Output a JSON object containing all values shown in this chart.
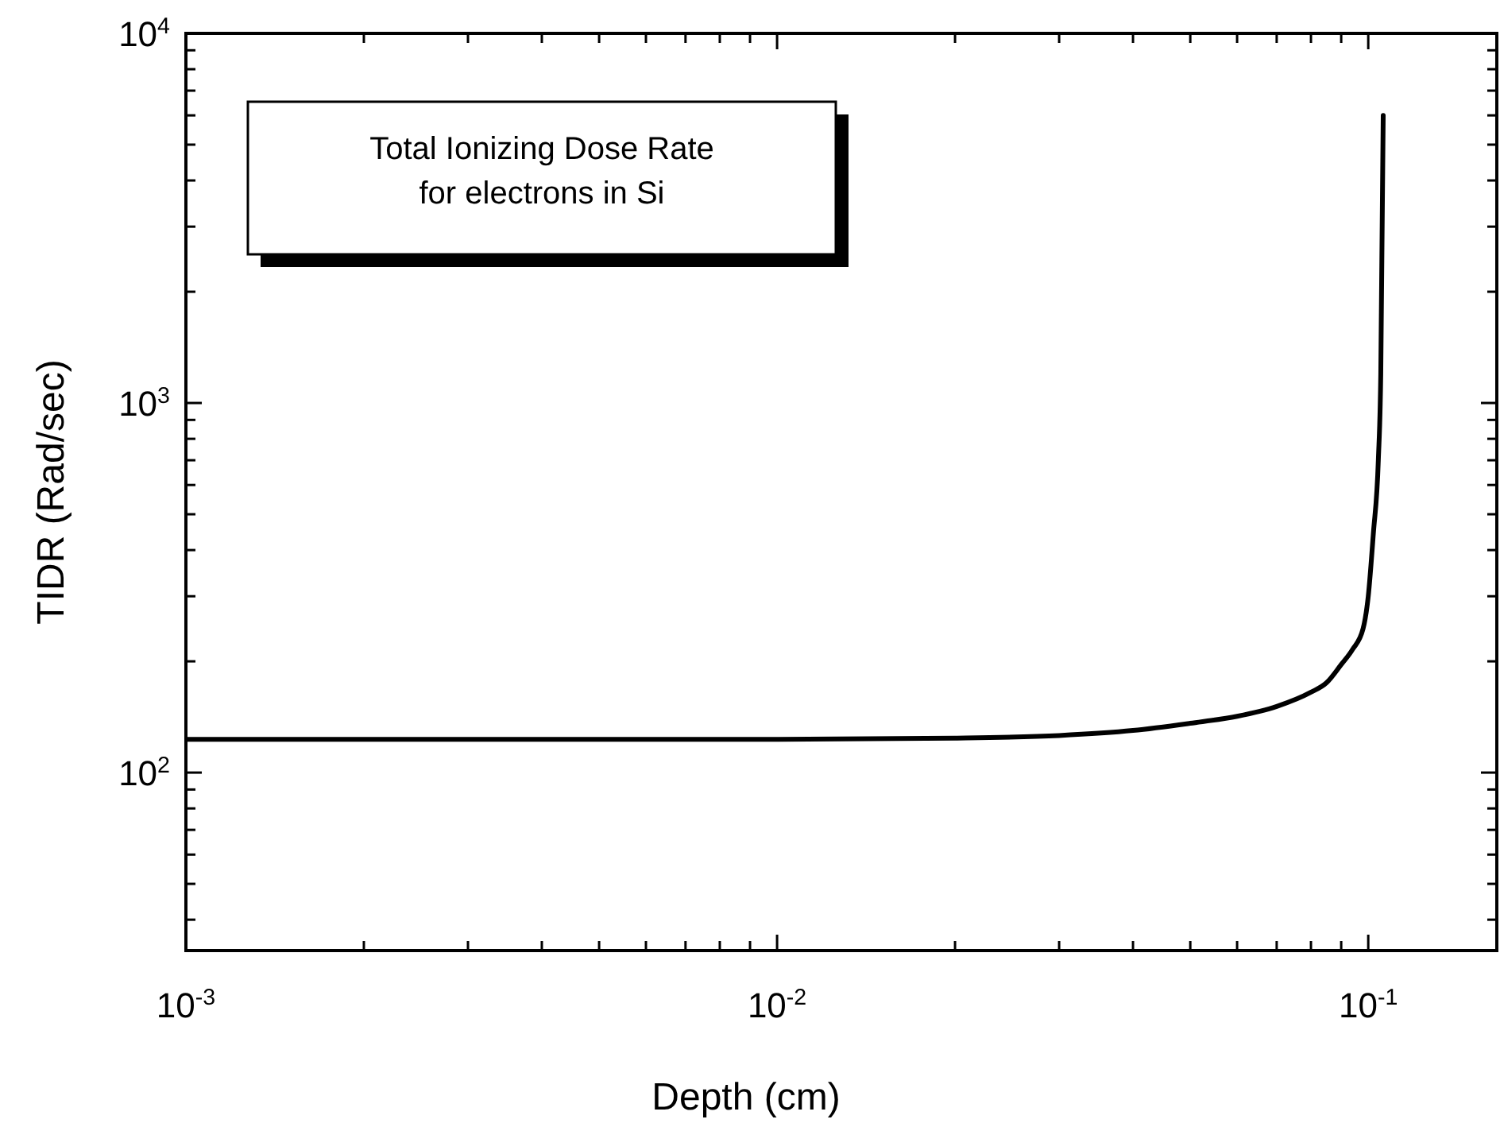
{
  "chart_data": {
    "type": "line",
    "title": "Total Ionizing Dose Rate\nfor electrons in Si",
    "xlabel": "Depth (cm)",
    "ylabel": "TIDR (Rad/sec)",
    "log": "xy",
    "grid": false,
    "marker": "none",
    "line_style": "solid",
    "xlim": [
      0.001,
      0.165
    ],
    "ylim": [
      33,
      10000
    ],
    "xticks": [
      {
        "value": 0.001,
        "label": "10$^{-3}$"
      },
      {
        "value": 0.002,
        "label": null
      },
      {
        "value": 0.003,
        "label": null
      },
      {
        "value": 0.004,
        "label": null
      },
      {
        "value": 0.005,
        "label": null
      },
      {
        "value": 0.006,
        "label": null
      },
      {
        "value": 0.007,
        "label": null
      },
      {
        "value": 0.008,
        "label": null
      },
      {
        "value": 0.009,
        "label": null
      },
      {
        "value": 0.01,
        "label": "10$^{-2}$"
      },
      {
        "value": 0.02,
        "label": null
      },
      {
        "value": 0.03,
        "label": null
      },
      {
        "value": 0.04,
        "label": null
      },
      {
        "value": 0.05,
        "label": null
      },
      {
        "value": 0.06,
        "label": null
      },
      {
        "value": 0.07,
        "label": null
      },
      {
        "value": 0.08,
        "label": null
      },
      {
        "value": 0.09,
        "label": null
      },
      {
        "value": 0.1,
        "label": "10$^{-1}$"
      }
    ],
    "yticks": [
      {
        "value": 40,
        "label": null
      },
      {
        "value": 50,
        "label": null
      },
      {
        "value": 60,
        "label": null
      },
      {
        "value": 70,
        "label": null
      },
      {
        "value": 80,
        "label": null
      },
      {
        "value": 90,
        "label": null
      },
      {
        "value": 100,
        "label": "10$^{2}$"
      },
      {
        "value": 200,
        "label": null
      },
      {
        "value": 300,
        "label": null
      },
      {
        "value": 400,
        "label": null
      },
      {
        "value": 500,
        "label": null
      },
      {
        "value": 600,
        "label": null
      },
      {
        "value": 700,
        "label": null
      },
      {
        "value": 800,
        "label": null
      },
      {
        "value": 900,
        "label": null
      },
      {
        "value": 1000,
        "label": "10$^{3}$"
      },
      {
        "value": 2000,
        "label": null
      },
      {
        "value": 3000,
        "label": null
      },
      {
        "value": 4000,
        "label": null
      },
      {
        "value": 5000,
        "label": null
      },
      {
        "value": 6000,
        "label": null
      },
      {
        "value": 7000,
        "label": null
      },
      {
        "value": 8000,
        "label": null
      },
      {
        "value": 9000,
        "label": null
      },
      {
        "value": 10000,
        "label": "10$^{4}$"
      }
    ],
    "series": [
      {
        "color": "#000000",
        "x": [
          0.001,
          0.003,
          0.01,
          0.02,
          0.03,
          0.04,
          0.05,
          0.06,
          0.07,
          0.08,
          0.085,
          0.09,
          0.094,
          0.098,
          0.1,
          0.102,
          0.104,
          0.105,
          0.106
        ],
        "values": [
          123,
          123,
          123,
          124,
          126,
          130,
          136,
          142,
          151,
          165,
          175,
          196,
          215,
          245,
          300,
          443,
          700,
          1200,
          6000
        ]
      }
    ]
  }
}
